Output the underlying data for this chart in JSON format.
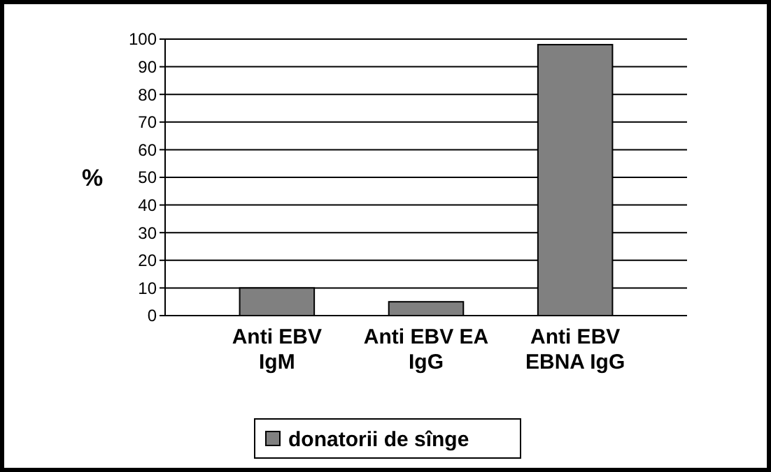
{
  "chart_data": {
    "type": "bar",
    "ylabel": "%",
    "categories": [
      "Anti EBV\nIgM",
      "Anti EBV EA\nIgG",
      "Anti EBV\nEBNA IgG"
    ],
    "series": [
      {
        "name": "donatorii de sînge",
        "color": "#808080",
        "values": [
          10,
          5,
          98
        ]
      }
    ],
    "ylim": [
      0,
      100
    ],
    "yticks": [
      0,
      10,
      20,
      30,
      40,
      50,
      60,
      70,
      80,
      90,
      100
    ],
    "grid": "y",
    "legend": "bottom"
  }
}
